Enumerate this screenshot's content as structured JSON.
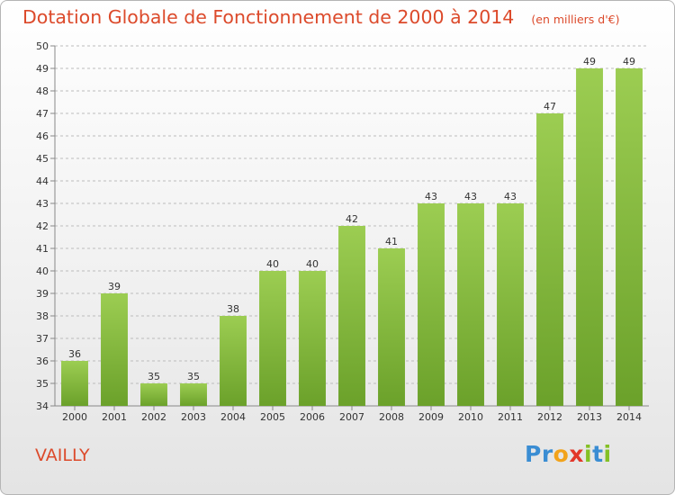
{
  "chart_data": {
    "type": "bar",
    "title": "Dotation Globale de Fonctionnement de 2000 à 2014",
    "subtitle": "(en milliers d'€)",
    "categories": [
      "2000",
      "2001",
      "2002",
      "2003",
      "2004",
      "2005",
      "2006",
      "2007",
      "2008",
      "2009",
      "2010",
      "2011",
      "2012",
      "2013",
      "2014"
    ],
    "values": [
      36,
      39,
      35,
      35,
      38,
      40,
      40,
      42,
      41,
      43,
      43,
      43,
      47,
      49,
      49
    ],
    "ylim": [
      34,
      50
    ],
    "yticks": [
      34,
      35,
      36,
      37,
      38,
      39,
      40,
      41,
      42,
      43,
      44,
      45,
      46,
      47,
      48,
      49,
      50
    ],
    "grid": true,
    "colors": {
      "bar_light": "#9ccd52",
      "bar_dark": "#6ba12a",
      "grid": "#bcbcbc",
      "text": "#333333",
      "title": "#dc4a2b"
    }
  },
  "commune": "VAILLY",
  "logo": {
    "letters": [
      {
        "ch": "P",
        "color": "#3a8dd3"
      },
      {
        "ch": "r",
        "color": "#3a8dd3"
      },
      {
        "ch": "o",
        "color": "#f2a31b"
      },
      {
        "ch": "x",
        "color": "#e2372a"
      },
      {
        "ch": "i",
        "color": "#84c025"
      },
      {
        "ch": "t",
        "color": "#3a8dd3"
      },
      {
        "ch": "i",
        "color": "#84c025"
      }
    ]
  }
}
